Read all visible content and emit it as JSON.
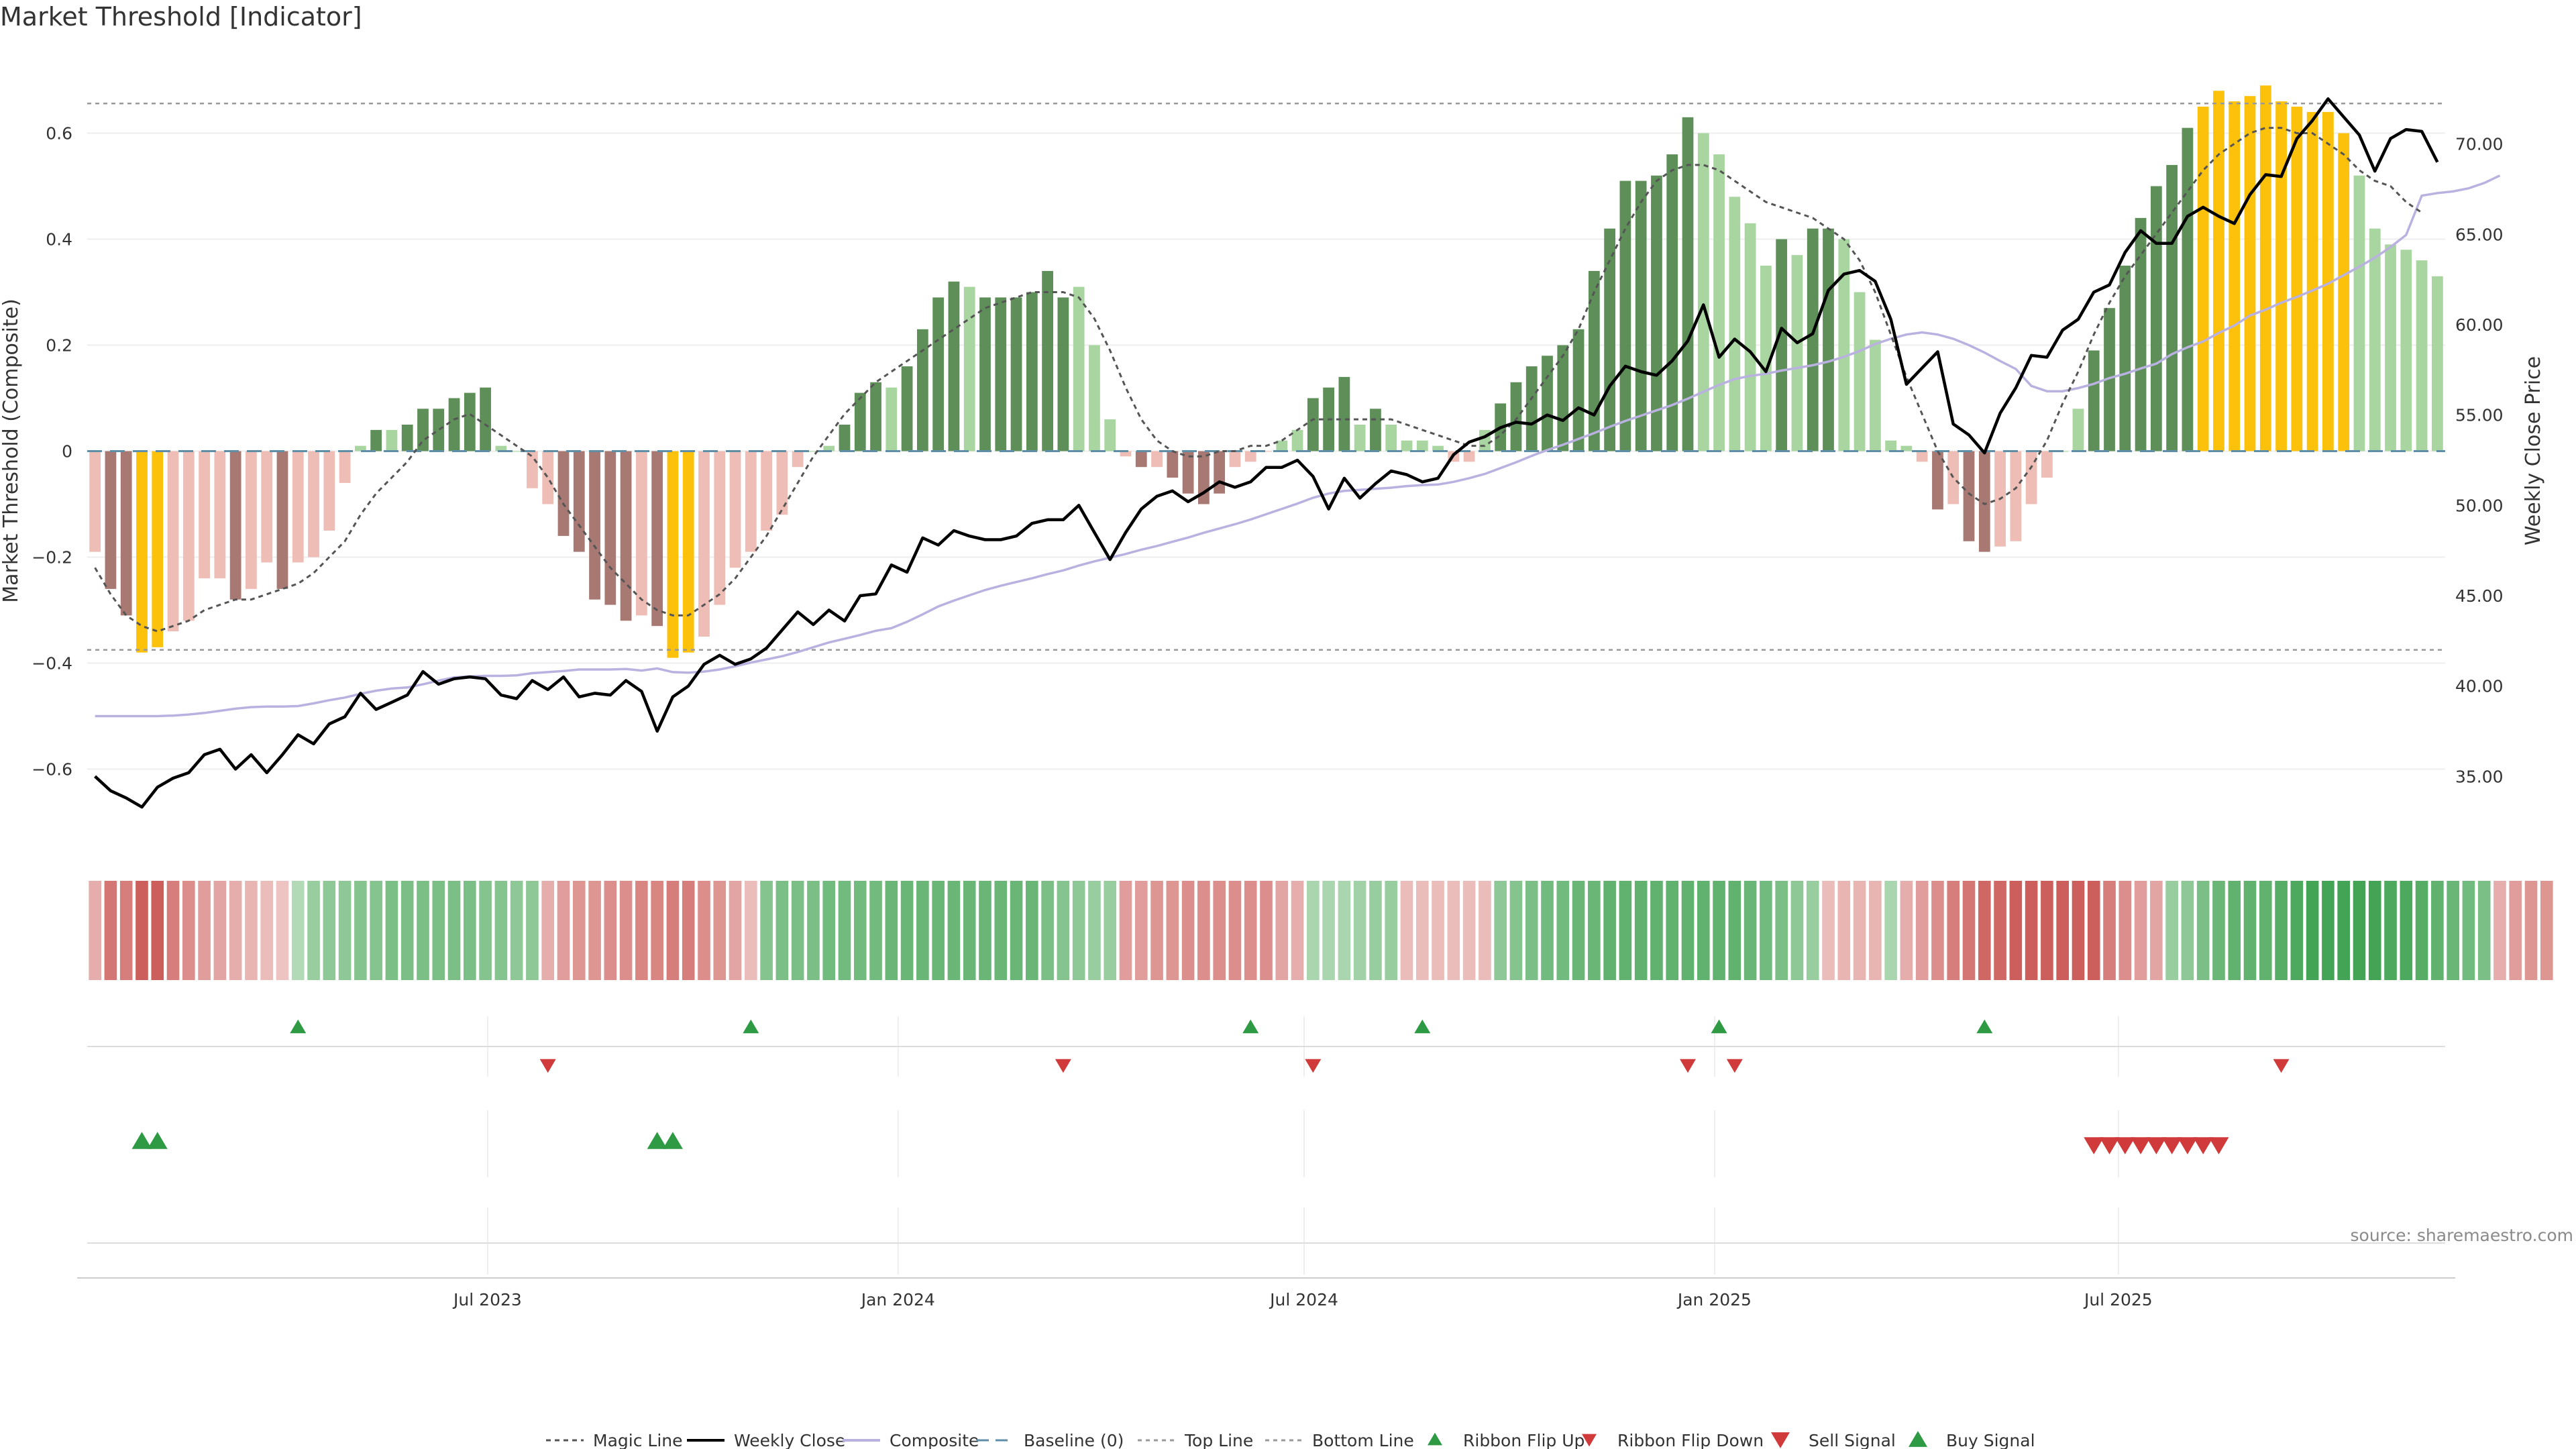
{
  "title": "Market Threshold [Indicator]",
  "source_text": "source: sharemaestro.com",
  "colors": {
    "bar_dark_green": "#5e8f59",
    "bar_light_green": "#a8d5a0",
    "bar_dark_red": "#a87873",
    "bar_light_red": "#eebdb5",
    "bar_yellow": "#fcc10b",
    "close_line": "#000000",
    "composite_line": "#b9b2e0",
    "magic_line": "#555555",
    "baseline": "#5f8fa8",
    "threshold_line": "#9a9a9a",
    "ribbon_green_strong": "#44a455",
    "ribbon_green_light": "#cfe8d0",
    "ribbon_red_strong": "#cc5f5c",
    "ribbon_red_light": "#f2d4d2",
    "signal_up": "#2e9a44",
    "signal_down": "#d03a3a"
  },
  "chart_data": {
    "type": "bar",
    "x_axis": {
      "start": "2023-01-06",
      "frequency": "weekly",
      "tick_labels": [
        "Jul 2023",
        "Jan 2024",
        "Jul 2024",
        "Jan 2025",
        "Jul 2025"
      ],
      "tick_dates": [
        "2023-07-01",
        "2024-01-01",
        "2024-07-01",
        "2025-01-01",
        "2025-07-01"
      ]
    },
    "y_left": {
      "label": "Market Threshold (Composite)",
      "range": [
        -0.75,
        0.75
      ],
      "ticks": [
        0.6,
        0.4,
        0.2,
        0,
        -0.2,
        -0.4,
        -0.6
      ],
      "tick_labels": [
        "0.6",
        "0.4",
        "0.2",
        "0",
        "−0.2",
        "−0.4",
        "−0.6"
      ]
    },
    "y_right": {
      "label": "Weekly Close Price",
      "range": [
        31.0,
        75.0
      ],
      "ticks": [
        70,
        65,
        60,
        55,
        50,
        45,
        40,
        35
      ],
      "tick_labels": [
        "70.00",
        "65.00",
        "60.00",
        "55.00",
        "50.00",
        "45.00",
        "40.00",
        "35.00"
      ]
    },
    "top_line": 0.656,
    "bottom_line": -0.375,
    "bars": [
      -0.19,
      -0.26,
      -0.31,
      -0.38,
      -0.37,
      -0.34,
      -0.32,
      -0.24,
      -0.24,
      -0.28,
      -0.26,
      -0.21,
      -0.26,
      -0.21,
      -0.2,
      -0.15,
      -0.06,
      0.01,
      0.04,
      0.04,
      0.05,
      0.08,
      0.08,
      0.1,
      0.11,
      0.12,
      0.01,
      0,
      -0.07,
      -0.1,
      -0.16,
      -0.19,
      -0.28,
      -0.29,
      -0.32,
      -0.31,
      -0.33,
      -0.39,
      -0.38,
      -0.35,
      -0.29,
      -0.22,
      -0.19,
      -0.15,
      -0.12,
      -0.03,
      0,
      0.01,
      0.05,
      0.11,
      0.13,
      0.12,
      0.16,
      0.23,
      0.29,
      0.32,
      0.31,
      0.29,
      0.29,
      0.29,
      0.3,
      0.34,
      0.29,
      0.31,
      0.2,
      0.06,
      -0.01,
      -0.03,
      -0.03,
      -0.05,
      -0.08,
      -0.1,
      -0.08,
      -0.03,
      -0.02,
      0,
      0.02,
      0.04,
      0.1,
      0.12,
      0.14,
      0.05,
      0.08,
      0.05,
      0.02,
      0.02,
      0.01,
      -0.02,
      -0.02,
      0.04,
      0.09,
      0.13,
      0.16,
      0.18,
      0.2,
      0.23,
      0.34,
      0.42,
      0.51,
      0.51,
      0.52,
      0.56,
      0.63,
      0.6,
      0.56,
      0.48,
      0.43,
      0.35,
      0.4,
      0.37,
      0.42,
      0.42,
      0.4,
      0.3,
      0.21,
      0.02,
      0.01,
      -0.02,
      -0.11,
      -0.1,
      -0.17,
      -0.19,
      -0.18,
      -0.17,
      -0.1,
      -0.05,
      0,
      0.08,
      0.19,
      0.27,
      0.35,
      0.44,
      0.5,
      0.54,
      0.61,
      0.65,
      0.68,
      0.66,
      0.67,
      0.69,
      0.66,
      0.65,
      0.64,
      0.64,
      0.6,
      0.52,
      0.42,
      0.39,
      0.38,
      0.36,
      0.33
    ],
    "bar_colors": [
      "lr",
      "dr",
      "dr",
      "y",
      "y",
      "lr",
      "lr",
      "lr",
      "lr",
      "dr",
      "lr",
      "lr",
      "dr",
      "lr",
      "lr",
      "lr",
      "lr",
      "lg",
      "dg",
      "lg",
      "dg",
      "dg",
      "dg",
      "dg",
      "dg",
      "dg",
      "lg",
      "lg",
      "lr",
      "lr",
      "dr",
      "dr",
      "dr",
      "dr",
      "dr",
      "lr",
      "dr",
      "y",
      "y",
      "lr",
      "lr",
      "lr",
      "lr",
      "lr",
      "lr",
      "lr",
      "lg",
      "lg",
      "dg",
      "dg",
      "dg",
      "lg",
      "dg",
      "dg",
      "dg",
      "dg",
      "lg",
      "dg",
      "dg",
      "dg",
      "dg",
      "dg",
      "dg",
      "lg",
      "lg",
      "lg",
      "lr",
      "dr",
      "lr",
      "dr",
      "dr",
      "dr",
      "dr",
      "lr",
      "lr",
      "lr",
      "lg",
      "lg",
      "dg",
      "dg",
      "dg",
      "lg",
      "dg",
      "lg",
      "lg",
      "lg",
      "lg",
      "lr",
      "lr",
      "lg",
      "dg",
      "dg",
      "dg",
      "dg",
      "dg",
      "dg",
      "dg",
      "dg",
      "dg",
      "dg",
      "dg",
      "dg",
      "dg",
      "lg",
      "lg",
      "lg",
      "lg",
      "lg",
      "dg",
      "lg",
      "dg",
      "dg",
      "lg",
      "lg",
      "lg",
      "lg",
      "lg",
      "lr",
      "dr",
      "lr",
      "dr",
      "dr",
      "lr",
      "lr",
      "lr",
      "lr",
      "lg",
      "lg",
      "dg",
      "dg",
      "dg",
      "dg",
      "dg",
      "dg",
      "dg",
      "y",
      "y",
      "y",
      "y",
      "y",
      "y",
      "y",
      "y",
      "y",
      "y",
      "lg",
      "lg",
      "lg",
      "lg",
      "lg",
      "lg",
      "lg"
    ],
    "weekly_close": [
      35.0,
      34.2,
      33.8,
      33.3,
      34.4,
      34.9,
      35.2,
      36.2,
      36.5,
      35.4,
      36.2,
      35.2,
      36.2,
      37.3,
      36.8,
      37.9,
      38.3,
      39.6,
      38.7,
      39.1,
      39.5,
      40.8,
      40.1,
      40.4,
      40.5,
      40.4,
      39.5,
      39.3,
      40.3,
      39.8,
      40.5,
      39.4,
      39.6,
      39.5,
      40.3,
      39.7,
      37.5,
      39.4,
      40.0,
      41.2,
      41.7,
      41.2,
      41.5,
      42.1,
      43.1,
      44.1,
      43.4,
      44.2,
      43.6,
      45.0,
      45.1,
      46.7,
      46.3,
      48.2,
      47.8,
      48.6,
      48.3,
      48.1,
      48.1,
      48.3,
      49.0,
      49.2,
      49.2,
      50.0,
      48.5,
      47.0,
      48.5,
      49.8,
      50.5,
      50.8,
      50.2,
      50.7,
      51.3,
      51.0,
      51.3,
      52.1,
      52.1,
      52.5,
      51.6,
      49.8,
      51.5,
      50.4,
      51.2,
      51.9,
      51.7,
      51.3,
      51.5,
      52.8,
      53.5,
      53.8,
      54.3,
      54.6,
      54.5,
      55.0,
      54.7,
      55.4,
      55.0,
      56.6,
      57.7,
      57.4,
      57.2,
      58.0,
      59.1,
      61.1,
      58.2,
      59.2,
      58.5,
      57.4,
      59.8,
      59.0,
      59.5,
      61.9,
      62.8,
      63.0,
      62.4,
      60.3,
      56.7,
      57.6,
      58.5,
      54.5,
      53.9,
      52.9,
      55.1,
      56.5,
      58.3,
      58.2,
      59.7,
      60.3,
      61.8,
      62.2,
      64.0,
      65.2,
      64.5,
      64.5,
      66.0,
      66.5,
      66.0,
      65.6,
      67.2,
      68.3,
      68.2,
      70.3,
      71.3,
      72.5,
      71.5,
      70.5,
      68.5,
      70.3,
      70.8,
      70.7,
      69.0
    ],
    "composite": [
      -0.5,
      -0.5,
      -0.5,
      -0.5,
      -0.5,
      -0.499,
      -0.497,
      -0.494,
      -0.49,
      -0.486,
      -0.483,
      -0.482,
      -0.482,
      -0.481,
      -0.476,
      -0.47,
      -0.465,
      -0.458,
      -0.452,
      -0.448,
      -0.446,
      -0.44,
      -0.433,
      -0.427,
      -0.425,
      -0.424,
      -0.424,
      -0.423,
      -0.419,
      -0.417,
      -0.415,
      -0.412,
      -0.412,
      -0.412,
      -0.411,
      -0.414,
      -0.41,
      -0.417,
      -0.418,
      -0.416,
      -0.412,
      -0.406,
      -0.399,
      -0.393,
      -0.387,
      -0.379,
      -0.37,
      -0.361,
      -0.354,
      -0.347,
      -0.339,
      -0.334,
      -0.322,
      -0.308,
      -0.293,
      -0.282,
      -0.272,
      -0.262,
      -0.254,
      -0.247,
      -0.24,
      -0.232,
      -0.225,
      -0.216,
      -0.208,
      -0.201,
      -0.194,
      -0.186,
      -0.179,
      -0.171,
      -0.163,
      -0.154,
      -0.146,
      -0.138,
      -0.129,
      -0.119,
      -0.109,
      -0.099,
      -0.088,
      -0.08,
      -0.075,
      -0.073,
      -0.071,
      -0.069,
      -0.066,
      -0.064,
      -0.063,
      -0.058,
      -0.051,
      -0.043,
      -0.032,
      -0.021,
      -0.009,
      0.002,
      0.012,
      0.023,
      0.034,
      0.046,
      0.057,
      0.067,
      0.077,
      0.087,
      0.099,
      0.112,
      0.125,
      0.136,
      0.142,
      0.146,
      0.152,
      0.157,
      0.162,
      0.169,
      0.178,
      0.189,
      0.202,
      0.212,
      0.22,
      0.224,
      0.22,
      0.212,
      0.2,
      0.186,
      0.17,
      0.155,
      0.123,
      0.113,
      0.113,
      0.119,
      0.127,
      0.138,
      0.146,
      0.156,
      0.165,
      0.183,
      0.196,
      0.207,
      0.223,
      0.237,
      0.256,
      0.267,
      0.28,
      0.291,
      0.303,
      0.316,
      0.332,
      0.348,
      0.365,
      0.385,
      0.408,
      0.482,
      0.487,
      0.49,
      0.496,
      0.506,
      0.52
    ],
    "magic_line": [
      -0.22,
      -0.27,
      -0.31,
      -0.33,
      -0.34,
      -0.33,
      -0.32,
      -0.3,
      -0.29,
      -0.28,
      -0.28,
      -0.27,
      -0.26,
      -0.25,
      -0.23,
      -0.2,
      -0.17,
      -0.12,
      -0.08,
      -0.05,
      -0.02,
      0.02,
      0.04,
      0.06,
      0.07,
      0.05,
      0.03,
      0.01,
      -0.01,
      -0.05,
      -0.1,
      -0.14,
      -0.18,
      -0.22,
      -0.25,
      -0.28,
      -0.3,
      -0.31,
      -0.31,
      -0.29,
      -0.27,
      -0.24,
      -0.2,
      -0.16,
      -0.11,
      -0.06,
      -0.01,
      0.03,
      0.07,
      0.1,
      0.13,
      0.15,
      0.17,
      0.19,
      0.21,
      0.23,
      0.25,
      0.27,
      0.28,
      0.29,
      0.3,
      0.3,
      0.3,
      0.29,
      0.25,
      0.19,
      0.12,
      0.06,
      0.02,
      0,
      -0.01,
      -0.01,
      0,
      0,
      0.01,
      0.01,
      0.02,
      0.04,
      0.06,
      0.06,
      0.06,
      0.06,
      0.06,
      0.06,
      0.05,
      0.04,
      0.03,
      0.02,
      0.01,
      0.01,
      0.03,
      0.06,
      0.1,
      0.14,
      0.18,
      0.23,
      0.3,
      0.36,
      0.42,
      0.47,
      0.51,
      0.53,
      0.54,
      0.54,
      0.53,
      0.51,
      0.49,
      0.47,
      0.46,
      0.45,
      0.44,
      0.42,
      0.4,
      0.36,
      0.3,
      0.22,
      0.14,
      0.07,
      0,
      -0.05,
      -0.08,
      -0.1,
      -0.09,
      -0.07,
      -0.03,
      0.02,
      0.09,
      0.15,
      0.22,
      0.28,
      0.33,
      0.37,
      0.41,
      0.45,
      0.49,
      0.53,
      0.56,
      0.58,
      0.6,
      0.61,
      0.61,
      0.6,
      0.6,
      0.58,
      0.56,
      0.53,
      0.51,
      0.5,
      0.47,
      0.45
    ],
    "ribbon": [
      -0.25,
      -0.6,
      -0.55,
      -0.85,
      -0.85,
      -0.55,
      -0.45,
      -0.35,
      -0.3,
      -0.25,
      -0.2,
      -0.15,
      -0.1,
      0.15,
      0.3,
      0.35,
      0.35,
      0.4,
      0.4,
      0.45,
      0.45,
      0.45,
      0.45,
      0.45,
      0.45,
      0.4,
      0.4,
      0.35,
      0.35,
      -0.25,
      -0.35,
      -0.4,
      -0.4,
      -0.45,
      -0.45,
      -0.5,
      -0.5,
      -0.55,
      -0.55,
      -0.45,
      -0.4,
      -0.3,
      -0.15,
      0.4,
      0.45,
      0.45,
      0.45,
      0.5,
      0.5,
      0.5,
      0.5,
      0.55,
      0.55,
      0.55,
      0.55,
      0.55,
      0.55,
      0.55,
      0.55,
      0.55,
      0.55,
      0.45,
      0.4,
      0.35,
      0.3,
      0.3,
      -0.35,
      -0.35,
      -0.4,
      -0.4,
      -0.45,
      -0.45,
      -0.45,
      -0.45,
      -0.45,
      -0.45,
      -0.3,
      -0.25,
      0.2,
      0.2,
      0.2,
      0.25,
      0.3,
      0.3,
      -0.15,
      -0.15,
      -0.15,
      -0.15,
      -0.15,
      -0.15,
      0.35,
      0.4,
      0.45,
      0.5,
      0.5,
      0.55,
      0.55,
      0.6,
      0.6,
      0.6,
      0.6,
      0.6,
      0.6,
      0.6,
      0.6,
      0.6,
      0.55,
      0.5,
      0.45,
      0.35,
      0.3,
      -0.15,
      -0.2,
      -0.2,
      -0.2,
      0.2,
      -0.25,
      -0.35,
      -0.45,
      -0.55,
      -0.6,
      -0.7,
      -0.7,
      -0.75,
      -0.75,
      -0.75,
      -0.75,
      -0.75,
      -0.75,
      -0.55,
      -0.45,
      -0.35,
      -0.3,
      0.3,
      0.35,
      0.45,
      0.55,
      0.6,
      0.6,
      0.6,
      0.65,
      0.7,
      0.75,
      0.75,
      0.75,
      0.75,
      0.75,
      0.7,
      0.7,
      0.65,
      0.6,
      0.55,
      0.5,
      0.45,
      -0.25,
      -0.35,
      -0.4,
      -0.4
    ],
    "ribbon_flip_up_weeks": [
      13,
      42,
      74,
      85,
      104,
      121
    ],
    "ribbon_flip_down_weeks": [
      29,
      62,
      78,
      102,
      105,
      140
    ],
    "buy_signal_weeks": [
      3,
      4,
      36,
      37
    ],
    "sell_signal_weeks": [
      128,
      129,
      130,
      131,
      132,
      133,
      134,
      135,
      136
    ],
    "legend": [
      "Magic Line",
      "Weekly Close",
      "Composite",
      "Baseline (0)",
      "Top Line",
      "Bottom Line",
      "Ribbon Flip Up",
      "Ribbon Flip Down",
      "Sell Signal",
      "Buy Signal"
    ],
    "legend_position": "bottom-center",
    "grid": true
  }
}
